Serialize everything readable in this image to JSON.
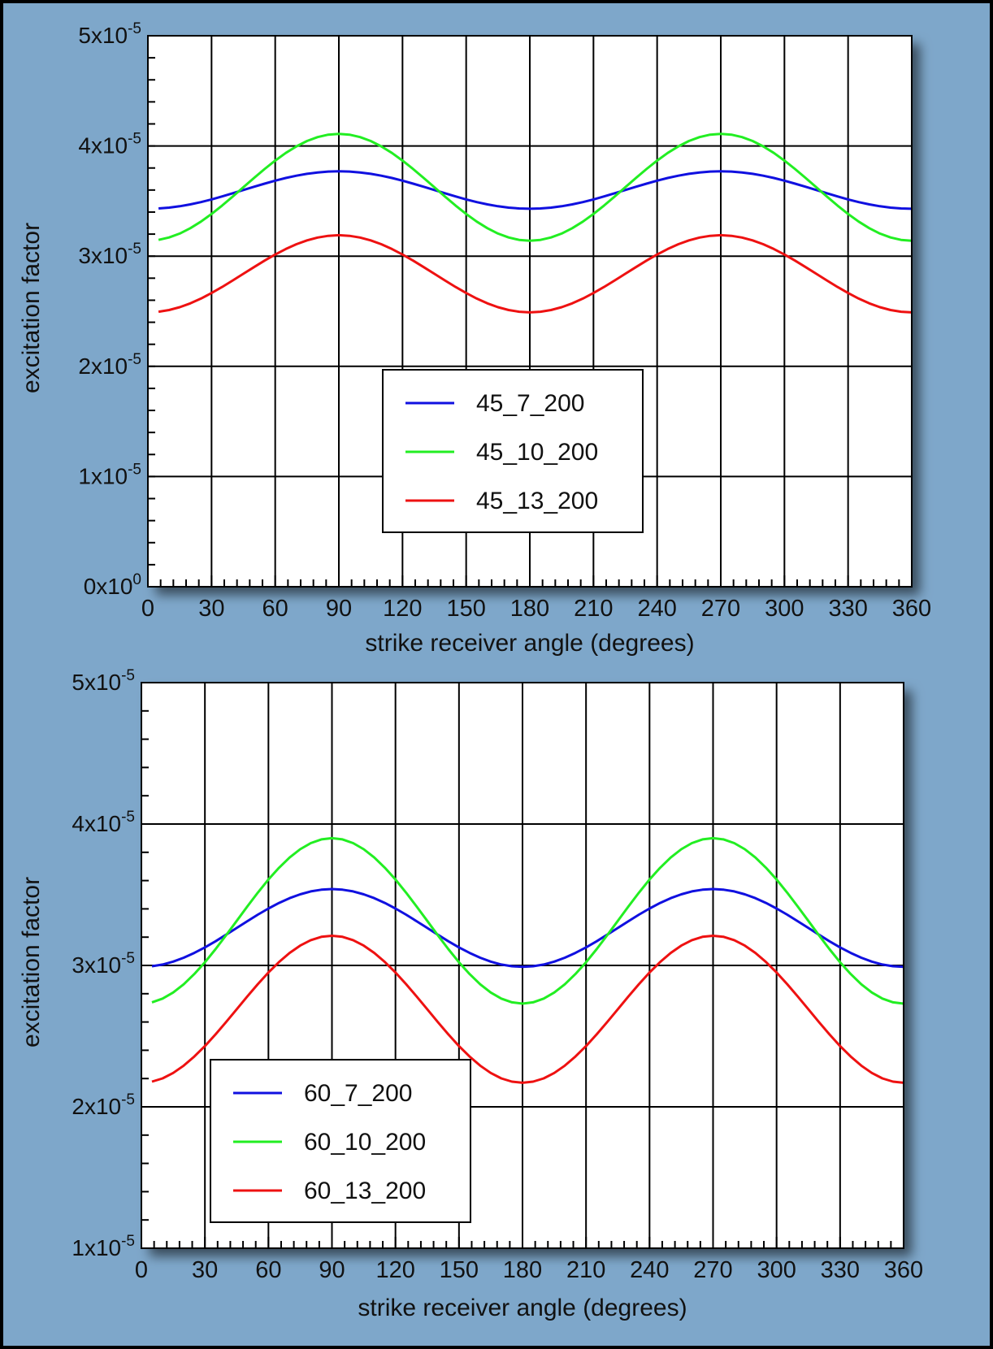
{
  "colors": {
    "background": "#7ea7ca",
    "plot_bg": "#ffffff",
    "series_7": "#1010e0",
    "series_10": "#22ee22",
    "series_13": "#ee1111"
  },
  "chart_data": [
    {
      "type": "line",
      "xlabel": "strike receiver angle (degrees)",
      "ylabel": "excitation factor",
      "xlim": [
        0,
        360
      ],
      "ylim": [
        0,
        5e-05
      ],
      "xticks": [
        0,
        30,
        60,
        90,
        120,
        150,
        180,
        210,
        240,
        270,
        300,
        330,
        360
      ],
      "x_tick_labels": [
        "0",
        "30",
        "60",
        "90",
        "120",
        "150",
        "180",
        "210",
        "240",
        "270",
        "300",
        "330",
        "360"
      ],
      "yticks": [
        0,
        1e-05,
        2e-05,
        3e-05,
        4e-05,
        5e-05
      ],
      "y_tick_labels": [
        {
          "mant": "0x10",
          "exp": "0"
        },
        {
          "mant": "1x10",
          "exp": "-5"
        },
        {
          "mant": "2x10",
          "exp": "-5"
        },
        {
          "mant": "3x10",
          "exp": "-5"
        },
        {
          "mant": "4x10",
          "exp": "-5"
        },
        {
          "mant": "5x10",
          "exp": "-5"
        }
      ],
      "grid": true,
      "legend_position": "center",
      "series": [
        {
          "name": "45_7_200",
          "color": "#1010e0",
          "mean": 3.6e-05,
          "amp": 1.7e-06,
          "xstart": 5,
          "xend": 360
        },
        {
          "name": "45_10_200",
          "color": "#22ee22",
          "mean": 3.625e-05,
          "amp": 4.85e-06,
          "xstart": 5,
          "xend": 360
        },
        {
          "name": "45_13_200",
          "color": "#ee1111",
          "mean": 2.84e-05,
          "amp": 3.5e-06,
          "xstart": 5,
          "xend": 360
        }
      ]
    },
    {
      "type": "line",
      "xlabel": "strike receiver angle (degrees)",
      "ylabel": "excitation factor",
      "xlim": [
        0,
        360
      ],
      "ylim": [
        1e-05,
        5e-05
      ],
      "xticks": [
        0,
        30,
        60,
        90,
        120,
        150,
        180,
        210,
        240,
        270,
        300,
        330,
        360
      ],
      "x_tick_labels": [
        "0",
        "30",
        "60",
        "90",
        "120",
        "150",
        "180",
        "210",
        "240",
        "270",
        "300",
        "330",
        "360"
      ],
      "yticks": [
        1e-05,
        2e-05,
        3e-05,
        4e-05,
        5e-05
      ],
      "y_tick_labels": [
        {
          "mant": "1x10",
          "exp": "-5"
        },
        {
          "mant": "2x10",
          "exp": "-5"
        },
        {
          "mant": "3x10",
          "exp": "-5"
        },
        {
          "mant": "4x10",
          "exp": "-5"
        },
        {
          "mant": "5x10",
          "exp": "-5"
        }
      ],
      "grid": true,
      "legend_position": "bottom-left",
      "series": [
        {
          "name": "60_7_200",
          "color": "#1010e0",
          "mean": 3.265e-05,
          "amp": 2.75e-06,
          "xstart": 5,
          "xend": 360
        },
        {
          "name": "60_10_200",
          "color": "#22ee22",
          "mean": 3.315e-05,
          "amp": 5.85e-06,
          "xstart": 5,
          "xend": 360
        },
        {
          "name": "60_13_200",
          "color": "#ee1111",
          "mean": 2.69e-05,
          "amp": 5.2e-06,
          "xstart": 5,
          "xend": 360
        }
      ]
    }
  ]
}
